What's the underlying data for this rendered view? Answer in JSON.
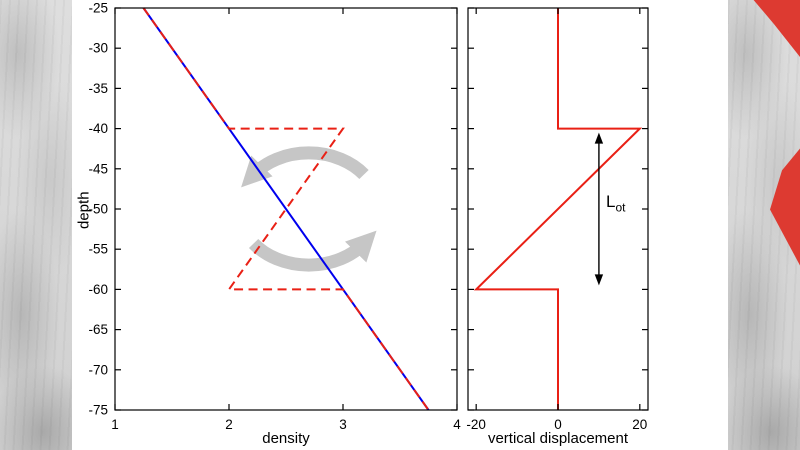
{
  "palette": {
    "line_blue": "#0000ee",
    "line_red": "#e92015",
    "circulation_gray": "#c6c6c6",
    "background_red": "#dd3a31",
    "axis_black": "#000000"
  },
  "figure": {
    "left_panel": {
      "ylabel": "depth",
      "xlabel": "density"
    },
    "right_panel": {
      "xlabel": "vertical displacement"
    },
    "annotation": {
      "label_main": "L",
      "label_sub": "ot"
    }
  },
  "chart_data": [
    {
      "type": "line",
      "panel": "left",
      "title": "",
      "xlabel": "density",
      "ylabel": "depth",
      "xlim": [
        1,
        4
      ],
      "ylim": [
        -75,
        -25
      ],
      "xticks": [
        1,
        2,
        3,
        4
      ],
      "yticks": [
        -75,
        -70,
        -65,
        -60,
        -55,
        -50,
        -45,
        -40,
        -35,
        -30,
        -25
      ],
      "show_xtick_labels": true,
      "show_ytick_labels": true,
      "grid": false,
      "series": [
        {
          "name": "stable-density-profile-line",
          "color": "#0000ee",
          "style": "solid",
          "width": 2,
          "x": [
            1.25,
            3.75
          ],
          "y": [
            -25,
            -75
          ]
        },
        {
          "name": "overturned-density-profile-line",
          "color": "#e92015",
          "style": "dashed",
          "width": 2,
          "x": [
            1.25,
            2,
            3,
            2,
            3,
            3.75
          ],
          "y": [
            -25,
            -40,
            -40,
            -60,
            -60,
            -75
          ]
        }
      ],
      "annotations": {
        "circulation_symbol": {
          "center_x": 2.7,
          "center_y": -50,
          "color": "#c6c6c6"
        }
      }
    },
    {
      "type": "line",
      "panel": "right",
      "title": "",
      "xlabel": "vertical displacement",
      "ylabel": "",
      "xlim": [
        -22,
        22
      ],
      "ylim": [
        -75,
        -25
      ],
      "xticks": [
        -20,
        0,
        20
      ],
      "yticks": [
        -75,
        -70,
        -65,
        -60,
        -55,
        -50,
        -45,
        -40,
        -35,
        -30,
        -25
      ],
      "show_xtick_labels": true,
      "show_ytick_labels": false,
      "grid": false,
      "series": [
        {
          "name": "vertical-displacement-profile-line",
          "color": "#e92015",
          "style": "solid",
          "width": 2,
          "x": [
            0,
            0,
            20,
            -20,
            0,
            0
          ],
          "y": [
            -25,
            -40,
            -40,
            -60,
            -60,
            -75
          ]
        }
      ],
      "annotations": {
        "double_arrow": {
          "x": 10,
          "y_top": -40,
          "y_bottom": -60,
          "label": "Lot"
        }
      }
    }
  ]
}
